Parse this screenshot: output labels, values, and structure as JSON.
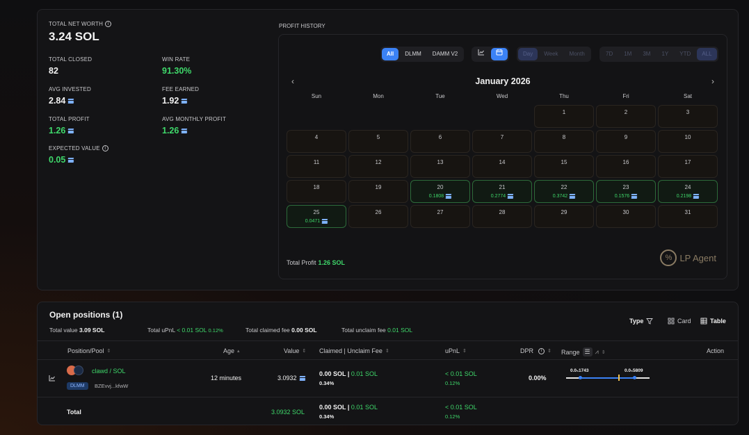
{
  "stats": {
    "net_worth": {
      "label": "TOTAL NET WORTH",
      "value": "3.24 SOL"
    },
    "total_closed": {
      "label": "TOTAL CLOSED",
      "value": "82"
    },
    "win_rate": {
      "label": "WIN RATE",
      "value": "91.30%"
    },
    "avg_invested": {
      "label": "AVG INVESTED",
      "value": "2.84"
    },
    "fee_earned": {
      "label": "FEE EARNED",
      "value": "1.92"
    },
    "total_profit": {
      "label": "TOTAL PROFIT",
      "value": "1.26"
    },
    "avg_monthly_profit": {
      "label": "AVG MONTHLY PROFIT",
      "value": "1.26"
    },
    "expected_value": {
      "label": "EXPECTED VALUE",
      "value": "0.05"
    }
  },
  "profit_history": {
    "title": "PROFIT HISTORY",
    "pool_filters": [
      "All",
      "DLMM",
      "DAMM V2"
    ],
    "pool_active": "All",
    "period": [
      "Day",
      "Week",
      "Month"
    ],
    "ranges": [
      "7D",
      "1M",
      "3M",
      "1Y",
      "YTD",
      "ALL"
    ],
    "month": "January 2026",
    "weekdays": [
      "Sun",
      "Mon",
      "Tue",
      "Wed",
      "Thu",
      "Fri",
      "Sat"
    ],
    "days": [
      {
        "d": "1",
        "p": ""
      },
      {
        "d": "2",
        "p": ""
      },
      {
        "d": "3",
        "p": ""
      },
      {
        "d": "4",
        "p": ""
      },
      {
        "d": "5",
        "p": ""
      },
      {
        "d": "6",
        "p": ""
      },
      {
        "d": "7",
        "p": ""
      },
      {
        "d": "8",
        "p": ""
      },
      {
        "d": "9",
        "p": ""
      },
      {
        "d": "10",
        "p": ""
      },
      {
        "d": "11",
        "p": ""
      },
      {
        "d": "12",
        "p": ""
      },
      {
        "d": "13",
        "p": ""
      },
      {
        "d": "14",
        "p": ""
      },
      {
        "d": "15",
        "p": ""
      },
      {
        "d": "16",
        "p": ""
      },
      {
        "d": "17",
        "p": ""
      },
      {
        "d": "18",
        "p": ""
      },
      {
        "d": "19",
        "p": ""
      },
      {
        "d": "20",
        "p": "0.1808"
      },
      {
        "d": "21",
        "p": "0.2774"
      },
      {
        "d": "22",
        "p": "0.3742"
      },
      {
        "d": "23",
        "p": "0.1576"
      },
      {
        "d": "24",
        "p": "0.2198"
      },
      {
        "d": "25",
        "p": "0.0471"
      },
      {
        "d": "26",
        "p": ""
      },
      {
        "d": "27",
        "p": ""
      },
      {
        "d": "28",
        "p": ""
      },
      {
        "d": "29",
        "p": ""
      },
      {
        "d": "30",
        "p": ""
      },
      {
        "d": "31",
        "p": ""
      }
    ],
    "total_profit_label": "Total Profit",
    "total_profit_value": "1.26 SOL",
    "brand": "LP Agent"
  },
  "positions": {
    "title": "Open positions (1)",
    "total_value_label": "Total value",
    "total_value": "3.09 SOL",
    "total_upnl_label": "Total uPnL",
    "total_upnl": "< 0.01 SOL",
    "total_upnl_pct": "0.12%",
    "claimed_label": "Total claimed fee",
    "claimed": "0.00 SOL",
    "unclaimed_label": "Total unclaim fee",
    "unclaimed": "0.01 SOL",
    "type_label": "Type",
    "card_label": "Card",
    "table_label": "Table",
    "columns": {
      "pool": "Position/Pool",
      "age": "Age",
      "value": "Value",
      "claimed": "Claimed | Unclaim Fee",
      "upnl": "uPnL",
      "dpr": "DPR",
      "range": "Range",
      "action": "Action"
    },
    "row": {
      "pool": "clawd / SOL",
      "badge": "DLMM",
      "address": "BZEvvj...kfwW",
      "age": "12 minutes",
      "value": "3.0932",
      "claimed": "0.00 SOL",
      "sep": "|",
      "unclaimed": "0.01 SOL",
      "fee_pct": "0.34%",
      "upnl": "< 0.01 SOL",
      "upnl_pct": "0.12%",
      "dpr": "0.00%",
      "range_low": "0.0₅1743",
      "range_high": "0.0₅5809"
    },
    "total_row": {
      "label": "Total",
      "value": "3.0932 SOL",
      "claimed": "0.00 SOL",
      "sep": "|",
      "unclaimed": "0.01 SOL",
      "fee_pct": "0.34%",
      "upnl": "< 0.01 SOL",
      "upnl_pct": "0.12%"
    }
  }
}
